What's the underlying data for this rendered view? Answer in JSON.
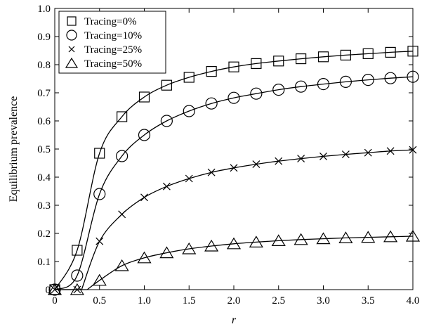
{
  "chart_data": {
    "type": "line",
    "xlabel": "r",
    "ylabel": "Equilibrium prevalence",
    "xlim": [
      0,
      4.0
    ],
    "ylim": [
      0,
      1.0
    ],
    "xticks": [
      "0",
      "0.5",
      "1.0",
      "1.5",
      "2.0",
      "2.5",
      "3.0",
      "3.5",
      "4.0"
    ],
    "yticks": [
      "0",
      "0.1",
      "0.2",
      "0.3",
      "0.4",
      "0.5",
      "0.6",
      "0.7",
      "0.8",
      "0.9",
      "1.0"
    ],
    "grid": false,
    "legend_position": "top-left",
    "x": [
      0,
      0.25,
      0.5,
      0.75,
      1.0,
      1.25,
      1.5,
      1.75,
      2.0,
      2.25,
      2.5,
      2.75,
      3.0,
      3.25,
      3.5,
      3.75,
      4.0
    ],
    "series": [
      {
        "name": "Tracing=0%",
        "marker": "square",
        "values": [
          0,
          0.14,
          0.485,
          0.615,
          0.685,
          0.727,
          0.755,
          0.776,
          0.792,
          0.804,
          0.813,
          0.821,
          0.828,
          0.834,
          0.839,
          0.844,
          0.848
        ]
      },
      {
        "name": "Tracing=10%",
        "marker": "circle",
        "values": [
          0,
          0.05,
          0.34,
          0.475,
          0.55,
          0.6,
          0.635,
          0.662,
          0.682,
          0.697,
          0.711,
          0.722,
          0.731,
          0.739,
          0.746,
          0.752,
          0.757
        ]
      },
      {
        "name": "Tracing=25%",
        "marker": "x",
        "values": [
          0,
          0.0,
          0.172,
          0.268,
          0.328,
          0.367,
          0.395,
          0.417,
          0.433,
          0.446,
          0.457,
          0.466,
          0.474,
          0.481,
          0.487,
          0.493,
          0.497
        ]
      },
      {
        "name": "Tracing=50%",
        "marker": "triangle",
        "values": [
          0,
          0.0,
          0.033,
          0.085,
          0.113,
          0.131,
          0.145,
          0.155,
          0.163,
          0.169,
          0.174,
          0.178,
          0.181,
          0.184,
          0.186,
          0.188,
          0.19
        ]
      }
    ]
  }
}
